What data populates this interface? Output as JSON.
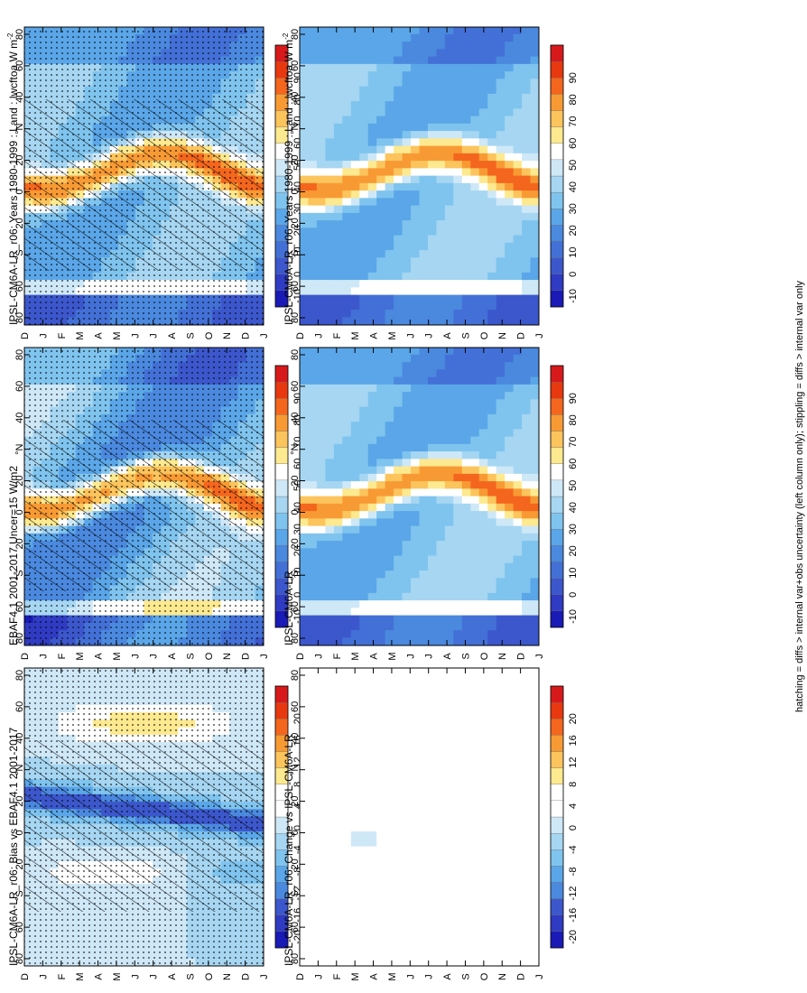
{
  "figure": {
    "footnote": "hatching = diffs > internal var+obs uncertainty (left column only); stippling = diffs > internal var only"
  },
  "months": [
    "D",
    "J",
    "F",
    "M",
    "A",
    "M",
    "J",
    "J",
    "A",
    "S",
    "O",
    "N",
    "D",
    "J"
  ],
  "latitudes": [
    "80",
    "60",
    "40",
    "°N",
    "20",
    "0",
    "20",
    "°S",
    "60",
    "80"
  ],
  "colorbars": {
    "absolute": {
      "labels": [
        "90",
        "80",
        "70",
        "60",
        "50",
        "40",
        "30",
        "20",
        "10",
        "0",
        "-10"
      ],
      "colors": [
        "#d7191c",
        "#e8380f",
        "#f4661d",
        "#f89a34",
        "#fcc45c",
        "#fde98f",
        "#ffffff",
        "#cfe8f7",
        "#a6d6f2",
        "#7fc4ee",
        "#5aa6e8",
        "#4b89df",
        "#4370d6",
        "#3c57cc",
        "#2f3bc2",
        "#1a1ab6"
      ]
    },
    "difference": {
      "labels": [
        "20",
        "16",
        "12",
        "8",
        "4",
        "0",
        "-4",
        "-8",
        "-12",
        "-16",
        "-20"
      ],
      "colors": [
        "#d7191c",
        "#e8380f",
        "#f4661d",
        "#f89a34",
        "#fcc45c",
        "#fde98f",
        "#ffffff",
        "#ffffff",
        "#cfe8f7",
        "#a6d6f2",
        "#7fc4ee",
        "#5aa6e8",
        "#4b89df",
        "#3c57cc",
        "#2f3bc2",
        "#1a1ab6"
      ]
    }
  },
  "panels": [
    {
      "title": "IPSL-CM6A-LR_r06: Years 1980-1999 : Land : lwcftoa W m",
      "superscript": "-2",
      "scale": "absolute",
      "pattern": "model",
      "hatch": true
    },
    {
      "title": "IPSL-CM6A-LR_r06: Years 1980-1999 : Land : lwcftoa W m",
      "superscript": "-2",
      "scale": "absolute",
      "pattern": "model",
      "hatch": false
    },
    {
      "title": "EBAF4.1 2001-2017 Uncer=15 W/m2",
      "superscript": "",
      "scale": "absolute",
      "pattern": "obs",
      "hatch": true
    },
    {
      "title": "IPSL-CM6A-LR",
      "superscript": "",
      "scale": "absolute",
      "pattern": "model",
      "hatch": false
    },
    {
      "title": "IPSL-CM6A-LR_r06: Bias vs EBAF4.1 2001-2017",
      "superscript": "",
      "scale": "difference",
      "pattern": "bias",
      "hatch": true
    },
    {
      "title": "IPSL-CM6A-LR_r06: Change vs IPSL-CM6A-LR",
      "superscript": "",
      "scale": "difference",
      "pattern": "change",
      "hatch": false
    }
  ],
  "chart_data": {
    "type": "heatmap",
    "variable": "lwcftoa",
    "units": "W m-2",
    "x_axis": "month (D to J)",
    "y_axis": "latitude (80N to 80S)",
    "levels_absolute": [
      90,
      80,
      70,
      60,
      50,
      40,
      30,
      20,
      10,
      0,
      -10
    ],
    "levels_difference": [
      20,
      16,
      12,
      8,
      4,
      0,
      -4,
      -8,
      -12,
      -16,
      -20
    ]
  }
}
